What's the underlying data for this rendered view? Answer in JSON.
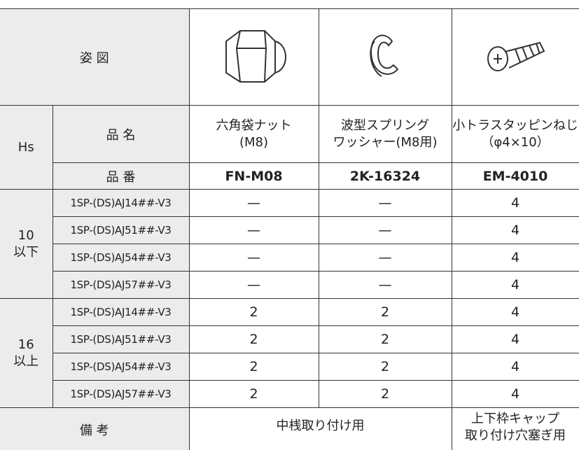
{
  "header": {
    "figure_label": "姿 図",
    "hs_label": "Hs",
    "name_label": "品 名",
    "part_no_label": "品 番"
  },
  "products": [
    {
      "name": [
        "六角袋ナット",
        "(M8)"
      ],
      "part_no": "FN-M08"
    },
    {
      "name": [
        "波型スプリング",
        "ワッシャー(M8用)"
      ],
      "part_no": "2K-16324"
    },
    {
      "name": [
        "小トラスタッピンねじ",
        "（φ4×10）"
      ],
      "part_no": "EM-4010"
    }
  ],
  "groups": [
    {
      "label": [
        "10",
        "以下"
      ],
      "rows": [
        {
          "model": "1SP-(DS)AJ14##-V3",
          "values": [
            "—",
            "—",
            "4"
          ]
        },
        {
          "model": "1SP-(DS)AJ51##-V3",
          "values": [
            "—",
            "—",
            "4"
          ]
        },
        {
          "model": "1SP-(DS)AJ54##-V3",
          "values": [
            "—",
            "—",
            "4"
          ]
        },
        {
          "model": "1SP-(DS)AJ57##-V3",
          "values": [
            "—",
            "—",
            "4"
          ]
        }
      ]
    },
    {
      "label": [
        "16",
        "以上"
      ],
      "rows": [
        {
          "model": "1SP-(DS)AJ14##-V3",
          "values": [
            "2",
            "2",
            "4"
          ]
        },
        {
          "model": "1SP-(DS)AJ51##-V3",
          "values": [
            "2",
            "2",
            "4"
          ]
        },
        {
          "model": "1SP-(DS)AJ54##-V3",
          "values": [
            "2",
            "2",
            "4"
          ]
        },
        {
          "model": "1SP-(DS)AJ57##-V3",
          "values": [
            "2",
            "2",
            "4"
          ]
        }
      ]
    }
  ],
  "remarks": {
    "label": "備 考",
    "notes": [
      [
        "中桟取り付け用"
      ],
      [
        "上下枠キャップ",
        "取り付け穴塞ぎ用"
      ]
    ]
  }
}
